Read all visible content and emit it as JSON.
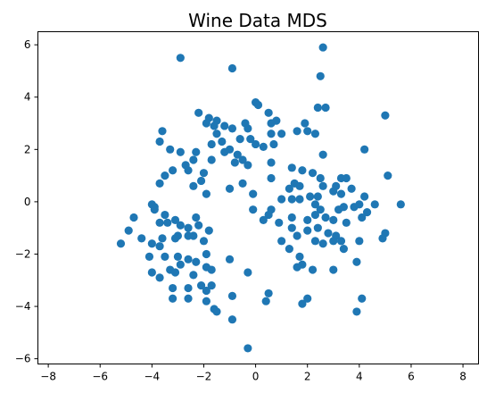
{
  "chart_data": {
    "type": "scatter",
    "title": "Wine Data MDS",
    "xlabel": "",
    "ylabel": "",
    "xlim": [
      -8.4,
      8.6
    ],
    "ylim": [
      -6.2,
      6.5
    ],
    "xticks": [
      -8,
      -6,
      -4,
      -2,
      0,
      2,
      4,
      6,
      8
    ],
    "yticks": [
      -6,
      -4,
      -2,
      0,
      2,
      4,
      6
    ],
    "grid": false,
    "marker_color": "#1f77b4",
    "series": [
      {
        "points": [
          [
            -2.9,
            5.5
          ],
          [
            -0.9,
            5.1
          ],
          [
            2.6,
            5.9
          ],
          [
            2.5,
            4.8
          ],
          [
            5.0,
            3.3
          ],
          [
            0.0,
            3.8
          ],
          [
            0.1,
            3.7
          ],
          [
            -2.2,
            3.4
          ],
          [
            -1.8,
            3.2
          ],
          [
            -1.5,
            3.1
          ],
          [
            0.5,
            3.4
          ],
          [
            0.8,
            3.1
          ],
          [
            0.6,
            3.0
          ],
          [
            2.4,
            3.6
          ],
          [
            2.7,
            3.6
          ],
          [
            1.9,
            3.0
          ],
          [
            -1.9,
            3.0
          ],
          [
            -1.6,
            2.9
          ],
          [
            -1.2,
            2.9
          ],
          [
            -0.9,
            2.8
          ],
          [
            -0.4,
            3.0
          ],
          [
            -0.3,
            2.8
          ],
          [
            0.6,
            2.6
          ],
          [
            1.0,
            2.6
          ],
          [
            1.6,
            2.7
          ],
          [
            2.0,
            2.7
          ],
          [
            2.3,
            2.6
          ],
          [
            -3.6,
            2.7
          ],
          [
            -3.7,
            2.3
          ],
          [
            -3.3,
            2.0
          ],
          [
            -2.9,
            1.9
          ],
          [
            -2.3,
            1.9
          ],
          [
            -1.5,
            2.6
          ],
          [
            -1.3,
            2.3
          ],
          [
            -0.6,
            2.4
          ],
          [
            -0.2,
            2.4
          ],
          [
            0.0,
            2.2
          ],
          [
            0.3,
            2.1
          ],
          [
            0.7,
            2.2
          ],
          [
            -1.7,
            2.2
          ],
          [
            -1.0,
            2.0
          ],
          [
            -1.2,
            1.9
          ],
          [
            -0.7,
            1.8
          ],
          [
            -0.5,
            1.6
          ],
          [
            -0.3,
            1.4
          ],
          [
            0.6,
            1.5
          ],
          [
            -2.6,
            1.2
          ],
          [
            -2.7,
            1.4
          ],
          [
            -2.4,
            1.6
          ],
          [
            -1.7,
            1.6
          ],
          [
            -0.8,
            1.5
          ],
          [
            -3.2,
            1.2
          ],
          [
            -3.5,
            1.0
          ],
          [
            -2.0,
            1.1
          ],
          [
            -2.1,
            0.8
          ],
          [
            -3.7,
            0.7
          ],
          [
            -2.4,
            0.6
          ],
          [
            -1.9,
            0.3
          ],
          [
            -1.0,
            0.5
          ],
          [
            -0.5,
            0.7
          ],
          [
            -0.1,
            0.3
          ],
          [
            0.6,
            0.9
          ],
          [
            1.4,
            1.3
          ],
          [
            1.8,
            1.2
          ],
          [
            2.2,
            1.1
          ],
          [
            2.5,
            0.9
          ],
          [
            2.6,
            1.8
          ],
          [
            4.2,
            2.0
          ],
          [
            5.1,
            1.0
          ],
          [
            1.5,
            0.7
          ],
          [
            1.3,
            0.5
          ],
          [
            1.7,
            0.6
          ],
          [
            2.6,
            0.6
          ],
          [
            3.0,
            0.4
          ],
          [
            3.1,
            0.6
          ],
          [
            3.3,
            0.9
          ],
          [
            3.5,
            0.9
          ],
          [
            2.1,
            0.2
          ],
          [
            2.4,
            0.2
          ],
          [
            3.3,
            0.3
          ],
          [
            3.7,
            0.5
          ],
          [
            4.2,
            0.2
          ],
          [
            4.0,
            -0.1
          ],
          [
            4.6,
            -0.1
          ],
          [
            5.6,
            -0.1
          ],
          [
            1.0,
            0.1
          ],
          [
            1.4,
            0.1
          ],
          [
            1.7,
            0.1
          ],
          [
            2.3,
            -0.1
          ],
          [
            2.5,
            -0.3
          ],
          [
            3.2,
            -0.3
          ],
          [
            3.4,
            -0.2
          ],
          [
            3.8,
            -0.2
          ],
          [
            -0.1,
            -0.3
          ],
          [
            0.6,
            -0.3
          ],
          [
            0.5,
            -0.5
          ],
          [
            0.3,
            -0.7
          ],
          [
            0.9,
            -0.8
          ],
          [
            1.4,
            -0.6
          ],
          [
            2.0,
            -0.7
          ],
          [
            2.3,
            -0.5
          ],
          [
            2.7,
            -0.6
          ],
          [
            3.0,
            -0.7
          ],
          [
            3.5,
            -0.8
          ],
          [
            4.1,
            -0.6
          ],
          [
            4.3,
            -0.4
          ],
          [
            5.0,
            -1.2
          ],
          [
            4.9,
            -1.4
          ],
          [
            1.4,
            -1.0
          ],
          [
            1.6,
            -1.3
          ],
          [
            2.0,
            -1.1
          ],
          [
            2.4,
            -1.0
          ],
          [
            2.8,
            -1.2
          ],
          [
            3.1,
            -1.3
          ],
          [
            2.6,
            -1.6
          ],
          [
            3.0,
            -1.5
          ],
          [
            3.3,
            -1.5
          ],
          [
            3.4,
            -1.8
          ],
          [
            4.0,
            -1.5
          ],
          [
            1.0,
            -1.5
          ],
          [
            1.3,
            -1.8
          ],
          [
            1.7,
            -2.1
          ],
          [
            2.3,
            -1.5
          ],
          [
            2.2,
            -2.6
          ],
          [
            1.8,
            -2.4
          ],
          [
            1.6,
            -2.5
          ],
          [
            3.0,
            -2.6
          ],
          [
            3.9,
            -2.3
          ],
          [
            4.1,
            -3.7
          ],
          [
            2.0,
            -3.7
          ],
          [
            1.8,
            -3.9
          ],
          [
            3.9,
            -4.2
          ],
          [
            -4.0,
            -0.1
          ],
          [
            -3.9,
            -0.2
          ],
          [
            -3.5,
            -0.5
          ],
          [
            -3.4,
            -0.8
          ],
          [
            -3.1,
            -0.7
          ],
          [
            -2.9,
            -0.9
          ],
          [
            -4.7,
            -0.6
          ],
          [
            -3.7,
            -0.8
          ],
          [
            -3.9,
            -0.3
          ],
          [
            -2.3,
            -0.6
          ],
          [
            -2.2,
            -0.9
          ],
          [
            -1.8,
            -1.1
          ],
          [
            -2.6,
            -1.0
          ],
          [
            -2.6,
            -1.3
          ],
          [
            -3.0,
            -1.3
          ],
          [
            -3.6,
            -1.4
          ],
          [
            -3.1,
            -1.4
          ],
          [
            -2.4,
            -1.3
          ],
          [
            -2.0,
            -1.5
          ],
          [
            -1.9,
            -2.0
          ],
          [
            -4.4,
            -1.4
          ],
          [
            -4.0,
            -1.6
          ],
          [
            -3.7,
            -1.7
          ],
          [
            -5.2,
            -1.6
          ],
          [
            -4.9,
            -1.1
          ],
          [
            -4.1,
            -2.1
          ],
          [
            -3.5,
            -2.1
          ],
          [
            -3.0,
            -2.1
          ],
          [
            -2.6,
            -2.2
          ],
          [
            -2.3,
            -2.3
          ],
          [
            -3.3,
            -2.6
          ],
          [
            -2.9,
            -2.4
          ],
          [
            -1.9,
            -2.5
          ],
          [
            -1.7,
            -2.6
          ],
          [
            -1.0,
            -2.2
          ],
          [
            -0.3,
            -2.7
          ],
          [
            -4.0,
            -2.7
          ],
          [
            -3.7,
            -2.9
          ],
          [
            -3.1,
            -2.7
          ],
          [
            -2.4,
            -2.8
          ],
          [
            -2.1,
            -3.2
          ],
          [
            -1.7,
            -3.2
          ],
          [
            -3.2,
            -3.3
          ],
          [
            -2.6,
            -3.3
          ],
          [
            -1.9,
            -3.4
          ],
          [
            -3.2,
            -3.7
          ],
          [
            -2.6,
            -3.7
          ],
          [
            -1.9,
            -3.8
          ],
          [
            -1.6,
            -4.1
          ],
          [
            -1.5,
            -4.2
          ],
          [
            -0.9,
            -3.6
          ],
          [
            -0.9,
            -4.5
          ],
          [
            0.5,
            -3.5
          ],
          [
            0.4,
            -3.8
          ],
          [
            -0.3,
            -5.6
          ]
        ]
      }
    ]
  }
}
